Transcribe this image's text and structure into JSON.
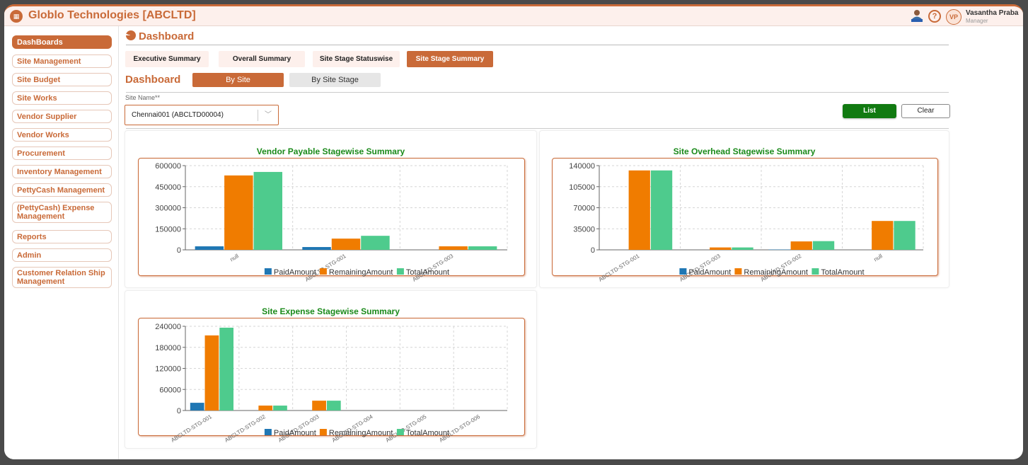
{
  "header": {
    "app_title": "Globlo Technologies [ABCLTD]",
    "logo_icon": "building-logo-icon",
    "help_glyph": "?",
    "user_initials": "VP",
    "user_name": "Vasantha Praba",
    "user_role": "Manager",
    "accent_color": "#c96a38"
  },
  "sidebar": {
    "items": [
      {
        "label": "DashBoards",
        "active": true
      },
      {
        "label": "Site Management"
      },
      {
        "label": "Site Budget"
      },
      {
        "label": "Site Works"
      },
      {
        "label": "Vendor Supplier"
      },
      {
        "label": "Vendor Works"
      },
      {
        "label": "Procurement"
      },
      {
        "label": "Inventory Management"
      },
      {
        "label": "PettyCash Management"
      },
      {
        "label": "(PettyCash) Expense Management"
      },
      {
        "label": "Reports"
      },
      {
        "label": "Admin"
      },
      {
        "label": "Customer Relation Ship Management"
      }
    ]
  },
  "page": {
    "title": "Dashboard",
    "tabs": [
      {
        "label": "Executive Summary"
      },
      {
        "label": "Overall Summary"
      },
      {
        "label": "Site Stage Statuswise"
      },
      {
        "label": "Site Stage Summary",
        "active": true
      }
    ],
    "dashboard_label": "Dashboard",
    "view_buttons": [
      {
        "label": "By Site",
        "active": true
      },
      {
        "label": "By Site Stage"
      }
    ],
    "site_field_label": "Site Name**",
    "site_value": "Chennai001 (ABCLTD00004)",
    "list_label": "List",
    "clear_label": "Clear"
  },
  "chart_data": [
    {
      "type": "bar",
      "title": "Vendor Payable Stagewise Summary",
      "categories": [
        "null",
        "ABCLTD-STG-001",
        "ABCLTD-STG-003"
      ],
      "series": [
        {
          "name": "PaidAmount",
          "color": "#1f77b4",
          "values": [
            25000,
            20000,
            0
          ]
        },
        {
          "name": "RemainingAmount",
          "color": "#f07c00",
          "values": [
            530000,
            80000,
            25000
          ]
        },
        {
          "name": "TotalAmount",
          "color": "#4ecb8d",
          "values": [
            555000,
            100000,
            25000
          ]
        }
      ],
      "yticks": [
        "0",
        "150000",
        "300000",
        "450000",
        "600000"
      ],
      "ylim": [
        0,
        600000
      ],
      "legend": "bottom"
    },
    {
      "type": "bar",
      "title": "Site Overhead Stagewise Summary",
      "categories": [
        "ABCLTD-STG-001",
        "ABCLTD-STG-003",
        "ABCLTD-STG-002",
        "null"
      ],
      "series": [
        {
          "name": "PaidAmount",
          "color": "#1f77b4",
          "values": [
            0,
            0,
            500,
            0
          ]
        },
        {
          "name": "RemainingAmount",
          "color": "#f07c00",
          "values": [
            132000,
            4000,
            14000,
            48000
          ]
        },
        {
          "name": "TotalAmount",
          "color": "#4ecb8d",
          "values": [
            132000,
            4000,
            14500,
            48000
          ]
        }
      ],
      "yticks": [
        "0",
        "35000",
        "70000",
        "105000",
        "140000"
      ],
      "ylim": [
        0,
        140000
      ],
      "legend": "bottom"
    },
    {
      "type": "bar",
      "title": "Site Expense Stagewise Summary",
      "categories": [
        "ABCLTD-STG-001",
        "ABCLTD-STG-002",
        "ABCLTD-STG-003",
        "ABCLTD-STG-004",
        "ABCLTD-STG-005",
        "ABCLTD-STG-006"
      ],
      "series": [
        {
          "name": "PaidAmount",
          "color": "#1f77b4",
          "values": [
            22000,
            0,
            0,
            0,
            0,
            0
          ]
        },
        {
          "name": "RemainingAmount",
          "color": "#f07c00",
          "values": [
            214000,
            14000,
            28000,
            0,
            0,
            0
          ]
        },
        {
          "name": "TotalAmount",
          "color": "#4ecb8d",
          "values": [
            236000,
            14000,
            28000,
            0,
            0,
            0
          ]
        }
      ],
      "yticks": [
        "0",
        "60000",
        "120000",
        "180000",
        "240000"
      ],
      "ylim": [
        0,
        240000
      ],
      "legend": "bottom"
    }
  ]
}
